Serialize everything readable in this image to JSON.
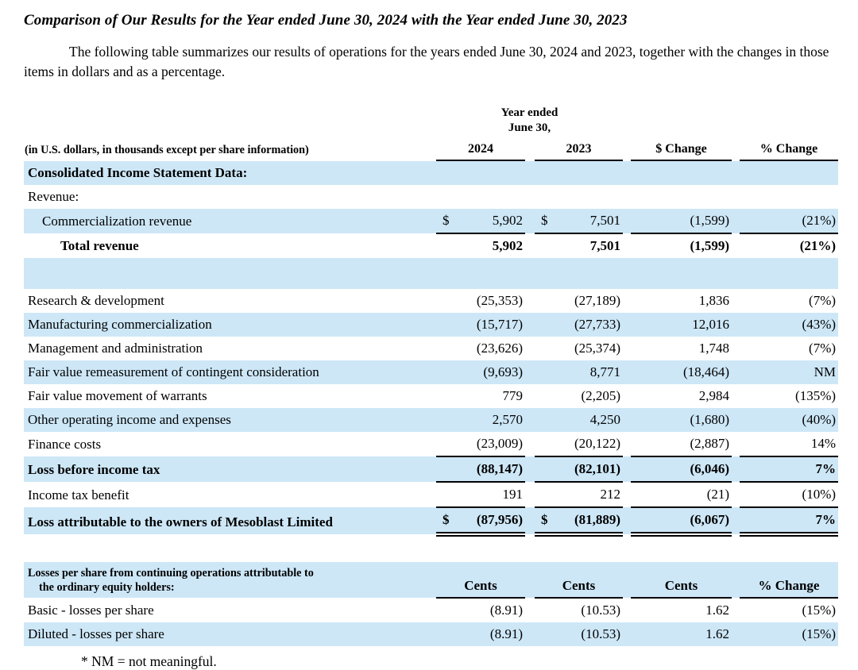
{
  "colors": {
    "row_highlight": "#cde7f7",
    "rule": "#000000"
  },
  "page": {
    "title": "Comparison of Our Results for the Year ended June 30, 2024 with the Year ended June 30, 2023",
    "intro": "The following table summarizes our results of operations for the years ended June 30, 2024 and 2023, together with the changes in those items in dollars and as a percentage.",
    "footnote": "* NM = not meaningful."
  },
  "main_table": {
    "caption": "(in U.S. dollars, in thousands except per share information)",
    "period_header": {
      "line1": "Year ended",
      "line2": "June 30,"
    },
    "currency_symbol": "$",
    "columns": [
      "2024",
      "2023",
      "$ Change",
      "% Change"
    ],
    "rows": [
      {
        "type": "section",
        "label": "Consolidated Income Statement Data:",
        "bg": "blue",
        "bold": true
      },
      {
        "type": "section",
        "label": "Revenue:",
        "bg": "white"
      },
      {
        "label": "Commercialization revenue",
        "indent": 1,
        "bg": "blue",
        "sym": true,
        "v1": "5,902",
        "v2": "7,501",
        "chg": "(1,599)",
        "pct": "(21%)",
        "rule": "single"
      },
      {
        "label": "Total revenue",
        "indent": 2,
        "bg": "white",
        "bold": true,
        "v1": "5,902",
        "v2": "7,501",
        "chg": "(1,599)",
        "pct": "(21%)"
      },
      {
        "type": "blank",
        "bg": "blue"
      },
      {
        "label": "Research & development",
        "bg": "white",
        "v1": "(25,353)",
        "v2": "(27,189)",
        "chg": "1,836",
        "pct": "(7%)"
      },
      {
        "label": "Manufacturing commercialization",
        "bg": "blue",
        "v1": "(15,717)",
        "v2": "(27,733)",
        "chg": "12,016",
        "pct": "(43%)"
      },
      {
        "label": "Management and administration",
        "bg": "white",
        "v1": "(23,626)",
        "v2": "(25,374)",
        "chg": "1,748",
        "pct": "(7%)"
      },
      {
        "label": "Fair value remeasurement of contingent consideration",
        "bg": "blue",
        "v1": "(9,693)",
        "v2": "8,771",
        "chg": "(18,464)",
        "pct": "NM"
      },
      {
        "label": "Fair value movement of warrants",
        "bg": "white",
        "v1": "779",
        "v2": "(2,205)",
        "chg": "2,984",
        "pct": "(135%)"
      },
      {
        "label": "Other operating income and expenses",
        "bg": "blue",
        "v1": "2,570",
        "v2": "4,250",
        "chg": "(1,680)",
        "pct": "(40%)"
      },
      {
        "label": "Finance costs",
        "bg": "white",
        "v1": "(23,009)",
        "v2": "(20,122)",
        "chg": "(2,887)",
        "pct": "14%",
        "rule": "single"
      },
      {
        "label": "Loss before income tax",
        "bg": "blue",
        "bold": true,
        "v1": "(88,147)",
        "v2": "(82,101)",
        "chg": "(6,046)",
        "pct": "7%",
        "rule": "single"
      },
      {
        "label": "Income tax benefit",
        "bg": "white",
        "v1": "191",
        "v2": "212",
        "chg": "(21)",
        "pct": "(10%)",
        "rule": "single"
      },
      {
        "label": "Loss attributable to the owners of Mesoblast Limited",
        "bg": "blue",
        "bold": true,
        "sym": true,
        "v1": "(87,956)",
        "v2": "(81,889)",
        "chg": "(6,067)",
        "pct": "7%",
        "rule": "double"
      }
    ]
  },
  "eps_table": {
    "caption_line1": "Losses per share from continuing operations attributable to",
    "caption_line2": "the ordinary equity holders:",
    "columns": [
      "Cents",
      "Cents",
      "Cents",
      "% Change"
    ],
    "rows": [
      {
        "label": "Basic - losses per share",
        "bg": "white",
        "v1": "(8.91)",
        "v2": "(10.53)",
        "chg": "1.62",
        "pct": "(15%)"
      },
      {
        "label": "Diluted - losses per share",
        "bg": "blue",
        "v1": "(8.91)",
        "v2": "(10.53)",
        "chg": "1.62",
        "pct": "(15%)"
      }
    ]
  }
}
